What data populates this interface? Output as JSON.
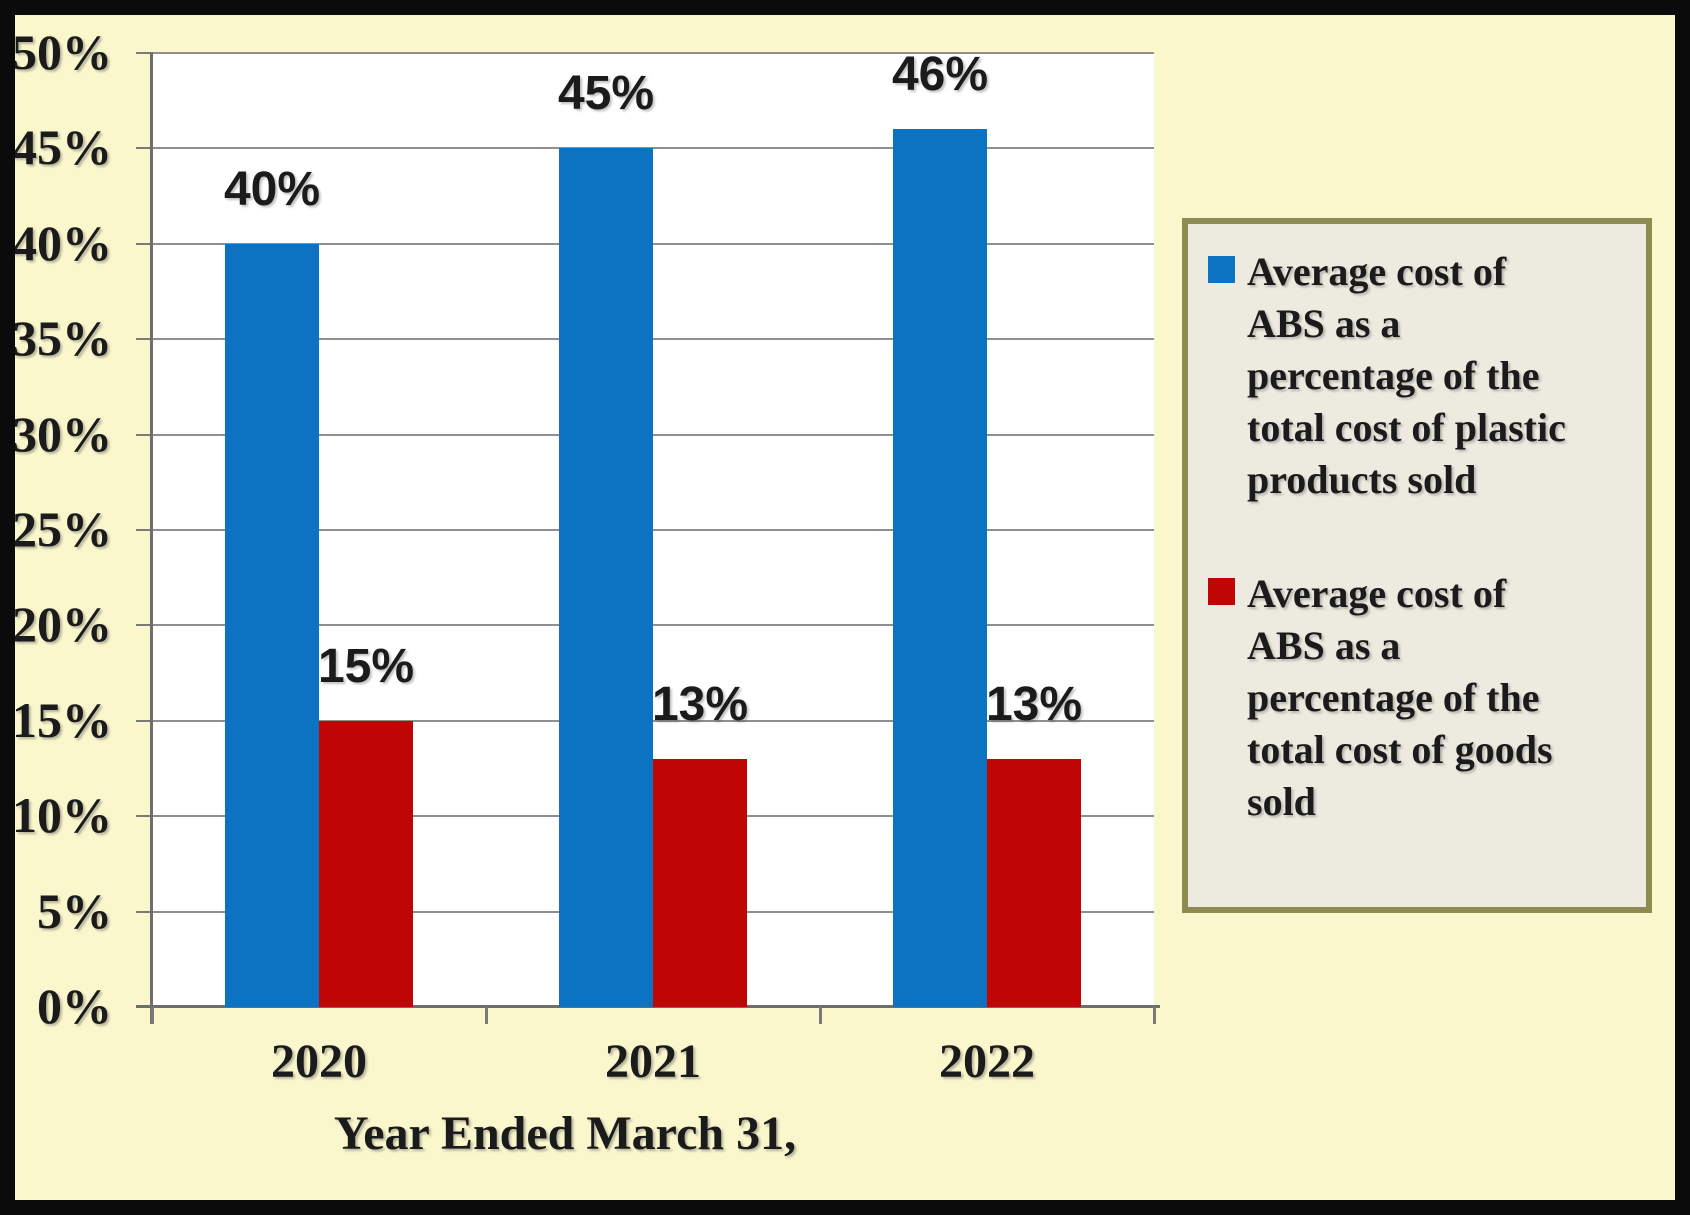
{
  "chart_data": {
    "type": "bar",
    "categories": [
      "2020",
      "2021",
      "2022"
    ],
    "series": [
      {
        "name": "Average cost of ABS as a percentage of the total cost of plastic products sold",
        "color": "#0C72C2",
        "values": [
          40,
          45,
          46
        ],
        "value_labels": [
          "40%",
          "45%",
          "46%"
        ]
      },
      {
        "name": "Average cost of ABS as a percentage of the total cost of goods sold",
        "color": "#C00505",
        "values": [
          15,
          13,
          13
        ],
        "value_labels": [
          "15%",
          "13%",
          "13%"
        ]
      }
    ],
    "title": "",
    "xlabel": "Year Ended March 31,",
    "ylabel": "",
    "ylim": [
      0,
      50
    ],
    "ytick_step": 5,
    "ytick_labels": [
      "0%",
      "5%",
      "10%",
      "15%",
      "20%",
      "25%",
      "30%",
      "35%",
      "40%",
      "45%",
      "50%"
    ],
    "grid": true,
    "legend_position": "right"
  },
  "colors": {
    "page_background": "#FAF7CD",
    "plot_background": "#FFFFFF",
    "frame_border": "#0B0B0B",
    "gridline": "#8F8F8F",
    "legend_background": "#EDEBE0",
    "legend_border": "#8C8B52",
    "text": "#1B1B1B"
  }
}
